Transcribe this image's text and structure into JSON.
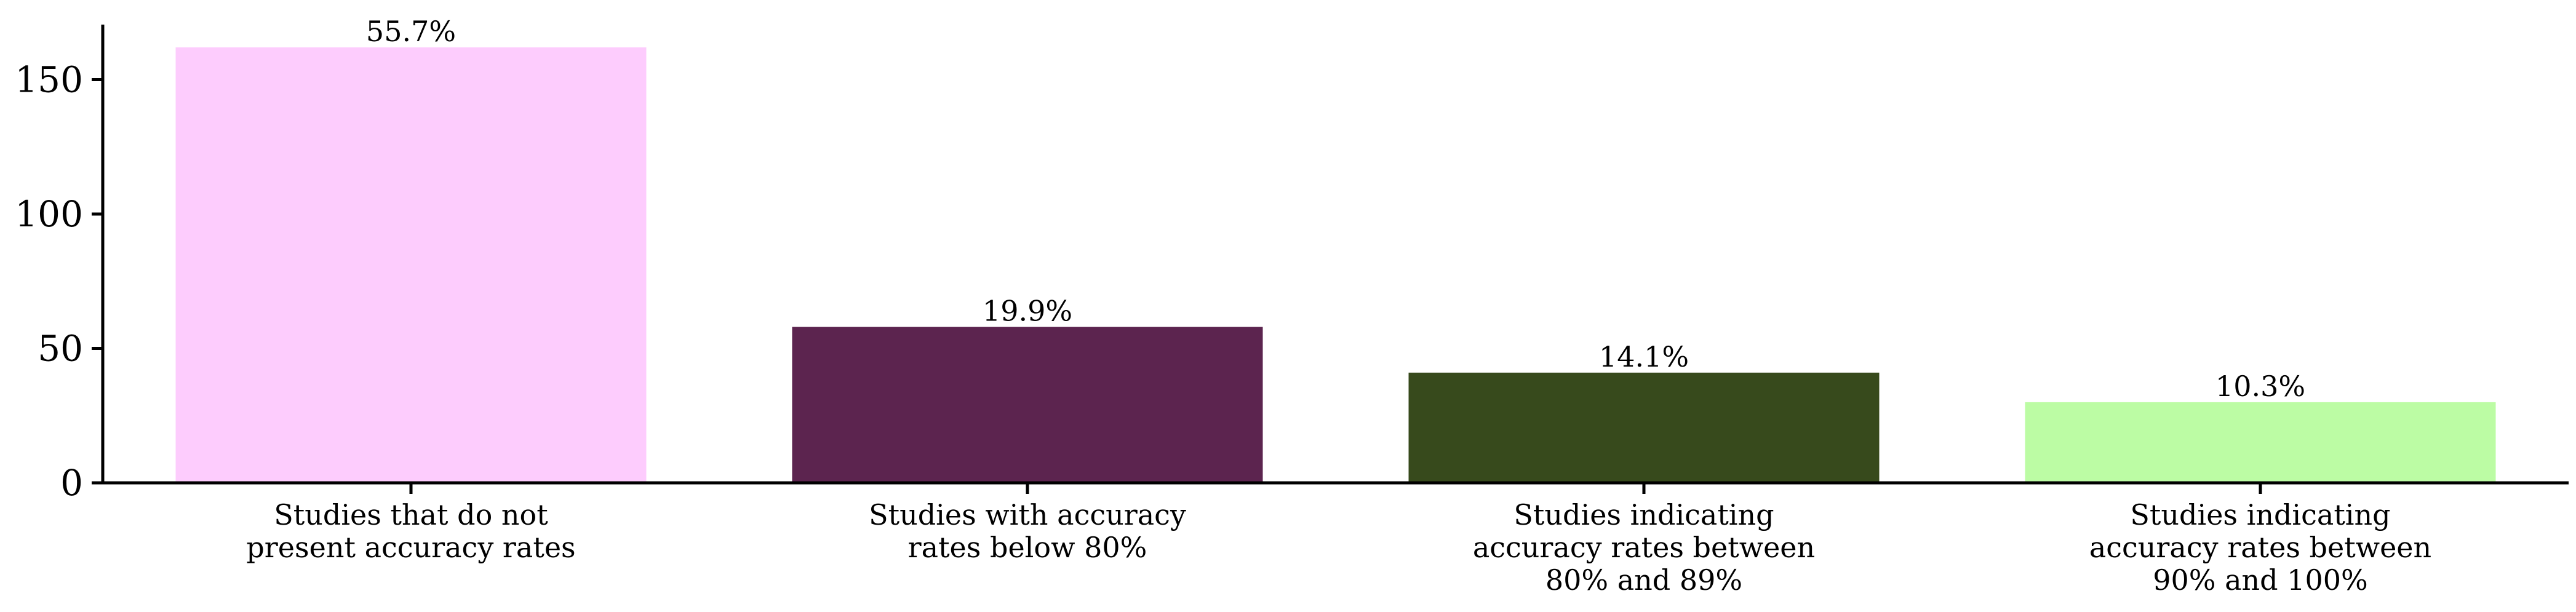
{
  "chart_data": {
    "type": "bar",
    "categories": [
      [
        "Studies that do not",
        "present accuracy rates"
      ],
      [
        "Studies with accuracy",
        "rates below 80%"
      ],
      [
        "Studies indicating",
        "accuracy rates between",
        "80% and 89%"
      ],
      [
        "Studies indicating",
        "accuracy rates between",
        "90% and 100%"
      ]
    ],
    "values": [
      162,
      58,
      41,
      30
    ],
    "data_labels": [
      "55.7%",
      "19.9%",
      "14.1%",
      "10.3%"
    ],
    "colors": [
      "#fdccfd",
      "#5c244f",
      "#374a1c",
      "#bcfca4"
    ],
    "yticks": [
      0,
      50,
      100,
      150
    ],
    "ylim": [
      0,
      170
    ],
    "title": "",
    "xlabel": "",
    "ylabel": "",
    "grid": false,
    "legend": "none"
  }
}
